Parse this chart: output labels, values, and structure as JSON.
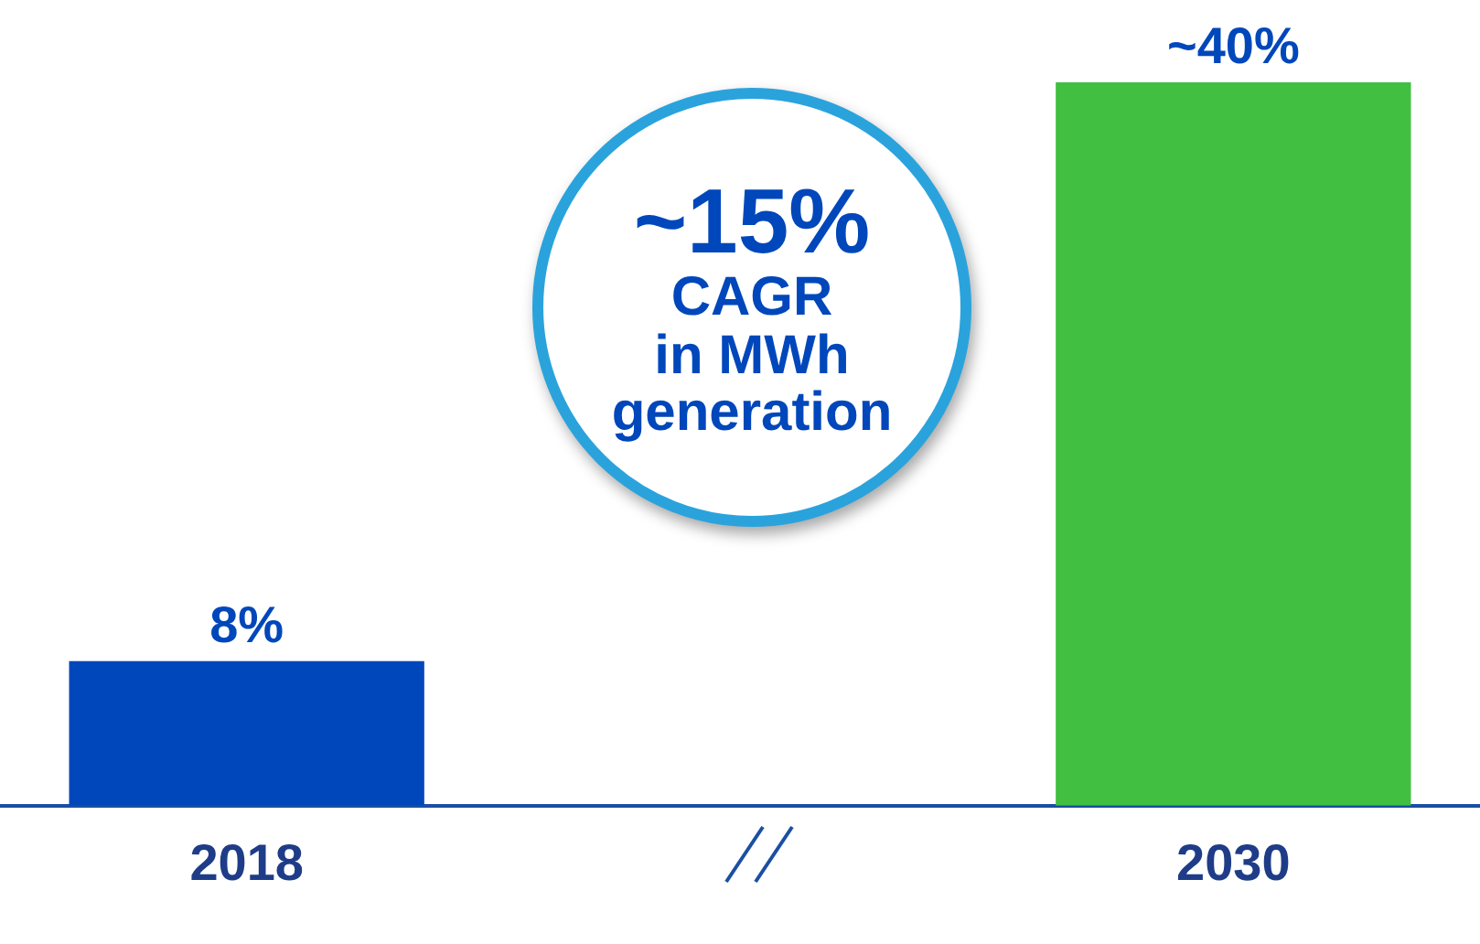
{
  "chart_data": {
    "type": "bar",
    "categories": [
      "2018",
      null,
      "2030"
    ],
    "values": [
      8,
      null,
      40
    ],
    "colors": [
      "#0047bb",
      null,
      "#40bf40"
    ],
    "value_labels": [
      "8%",
      null,
      "~40%"
    ],
    "ylim": [
      0,
      40
    ],
    "annotations": [
      "~15%\nCAGR\nin MWh\ngeneration"
    ],
    "grid": false,
    "legend": false
  }
}
